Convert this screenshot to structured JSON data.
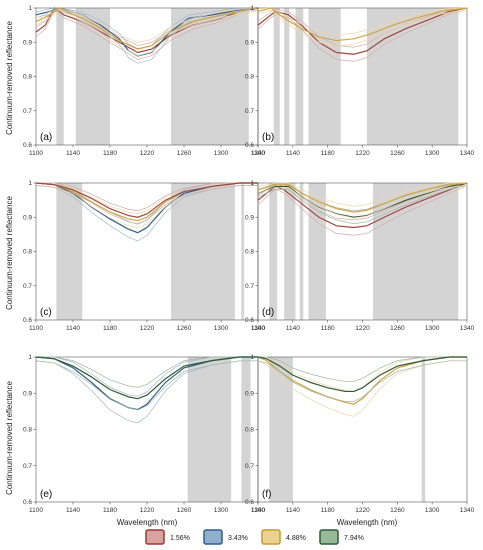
{
  "figure": {
    "ylabel": "Continuum-removed reflectance",
    "xlabel": "Wavelength (nm)"
  },
  "series_colors": {
    "1.56%": "#a0473f",
    "3.43%": "#2e5f8e",
    "4.88%": "#d5a53d",
    "7.94%": "#2f5a35"
  },
  "legend": [
    {
      "label": "1.56%",
      "fill": "#d8a3a0",
      "stroke": "#9a3b35"
    },
    {
      "label": "3.43%",
      "fill": "#8fb0cc",
      "stroke": "#2e5f8e"
    },
    {
      "label": "4.88%",
      "fill": "#ecd291",
      "stroke": "#c99a2e"
    },
    {
      "label": "7.94%",
      "fill": "#98b998",
      "stroke": "#2f5a35"
    }
  ],
  "chart_data": [
    {
      "type": "line",
      "panel": "(a)",
      "xlim": [
        1100,
        1340
      ],
      "ylim": [
        0.6,
        1.0
      ],
      "xticks": [
        1100,
        1140,
        1180,
        1220,
        1260,
        1300,
        1340
      ],
      "yticks": [
        "0.6",
        "0.7",
        "0.8",
        "0.9",
        "1"
      ],
      "shaded": [
        [
          1122,
          1130
        ],
        [
          1143,
          1180
        ],
        [
          1246,
          1330
        ]
      ],
      "band_width": 0.018,
      "series": [
        {
          "x": [
            1100,
            1110,
            1120,
            1130,
            1150,
            1170,
            1190,
            1210,
            1225,
            1245,
            1270,
            1300,
            1320,
            1340
          ],
          "y": [
            0.93,
            0.95,
            1.0,
            0.98,
            0.96,
            0.93,
            0.9,
            0.87,
            0.88,
            0.92,
            0.95,
            0.97,
            0.99,
            1.0
          ]
        },
        {
          "x": [
            1100,
            1115,
            1125,
            1150,
            1170,
            1190,
            1200,
            1210,
            1225,
            1245,
            1265,
            1290,
            1310,
            1330,
            1340
          ],
          "y": [
            0.98,
            0.99,
            1.0,
            0.98,
            0.95,
            0.91,
            0.875,
            0.86,
            0.87,
            0.93,
            0.97,
            0.98,
            0.99,
            1.0,
            1.0
          ]
        },
        {
          "x": [
            1100,
            1115,
            1125,
            1150,
            1170,
            1190,
            1210,
            1225,
            1245,
            1270,
            1300,
            1330,
            1340
          ],
          "y": [
            0.96,
            0.98,
            1.0,
            0.97,
            0.94,
            0.905,
            0.88,
            0.89,
            0.93,
            0.96,
            0.98,
            0.995,
            1.0
          ]
        }
      ]
    },
    {
      "type": "line",
      "panel": "(b)",
      "xlim": [
        1100,
        1340
      ],
      "ylim": [
        0.6,
        1.0
      ],
      "xticks": [
        1100,
        1140,
        1180,
        1220,
        1260,
        1300,
        1340
      ],
      "yticks": [
        "0.6",
        "0.7",
        "0.8",
        "0.9",
        "1"
      ],
      "shaded": [
        [
          1118,
          1125
        ],
        [
          1130,
          1136
        ],
        [
          1143,
          1152
        ],
        [
          1158,
          1195
        ],
        [
          1225,
          1330
        ]
      ],
      "band_width": 0.018,
      "series": [
        {
          "x": [
            1100,
            1110,
            1120,
            1135,
            1150,
            1170,
            1190,
            1210,
            1225,
            1245,
            1270,
            1300,
            1320,
            1340
          ],
          "y": [
            0.95,
            0.97,
            0.99,
            0.98,
            0.95,
            0.9,
            0.87,
            0.865,
            0.875,
            0.91,
            0.94,
            0.97,
            0.99,
            1.0
          ]
        },
        {
          "x": [
            1100,
            1115,
            1130,
            1150,
            1170,
            1190,
            1210,
            1230,
            1255,
            1280,
            1310,
            1340
          ],
          "y": [
            0.99,
            1.0,
            0.97,
            0.94,
            0.915,
            0.905,
            0.91,
            0.925,
            0.95,
            0.97,
            0.99,
            1.0
          ]
        }
      ]
    },
    {
      "type": "line",
      "panel": "(c)",
      "xlim": [
        1100,
        1340
      ],
      "ylim": [
        0.6,
        1.0
      ],
      "xticks": [
        1100,
        1140,
        1180,
        1220,
        1260,
        1300,
        1340
      ],
      "yticks": [
        "0.6",
        "0.7",
        "0.8",
        "0.9",
        "1"
      ],
      "shaded": [
        [
          1122,
          1150
        ],
        [
          1246,
          1315
        ],
        [
          1322,
          1325
        ]
      ],
      "band_width": 0.02,
      "series": [
        {
          "x": [
            1100,
            1120,
            1140,
            1160,
            1180,
            1200,
            1210,
            1220,
            1240,
            1260,
            1290,
            1320,
            1340
          ],
          "y": [
            1.0,
            0.995,
            0.97,
            0.93,
            0.895,
            0.865,
            0.855,
            0.87,
            0.93,
            0.97,
            0.99,
            1.0,
            1.0
          ]
        },
        {
          "x": [
            1100,
            1120,
            1140,
            1160,
            1180,
            1200,
            1210,
            1220,
            1240,
            1260,
            1290,
            1320,
            1340
          ],
          "y": [
            1.0,
            0.995,
            0.975,
            0.945,
            0.915,
            0.895,
            0.89,
            0.9,
            0.945,
            0.975,
            0.99,
            1.0,
            1.0
          ]
        },
        {
          "x": [
            1100,
            1120,
            1140,
            1160,
            1180,
            1200,
            1210,
            1220,
            1240,
            1260,
            1290,
            1320,
            1340
          ],
          "y": [
            1.0,
            0.995,
            0.98,
            0.955,
            0.925,
            0.905,
            0.9,
            0.91,
            0.95,
            0.975,
            0.99,
            1.0,
            1.0
          ]
        }
      ]
    },
    {
      "type": "line",
      "panel": "(d)",
      "xlim": [
        1100,
        1340
      ],
      "ylim": [
        0.6,
        1.0
      ],
      "xticks": [
        1100,
        1140,
        1180,
        1220,
        1260,
        1300,
        1340
      ],
      "yticks": [
        "0.6",
        "0.7",
        "0.8",
        "0.9",
        "1"
      ],
      "shaded": [
        [
          1113,
          1122
        ],
        [
          1130,
          1143
        ],
        [
          1148,
          1152
        ],
        [
          1158,
          1178
        ],
        [
          1232,
          1330
        ]
      ],
      "band_width": 0.02,
      "series": [
        {
          "x": [
            1100,
            1110,
            1120,
            1130,
            1150,
            1170,
            1190,
            1210,
            1225,
            1245,
            1270,
            1300,
            1320,
            1340
          ],
          "y": [
            0.95,
            0.97,
            0.99,
            0.98,
            0.94,
            0.9,
            0.875,
            0.87,
            0.875,
            0.9,
            0.93,
            0.96,
            0.98,
            1.0
          ]
        },
        {
          "x": [
            1100,
            1120,
            1135,
            1150,
            1170,
            1190,
            1210,
            1225,
            1245,
            1270,
            1300,
            1320,
            1340
          ],
          "y": [
            0.97,
            0.99,
            0.99,
            0.96,
            0.93,
            0.91,
            0.9,
            0.905,
            0.925,
            0.95,
            0.975,
            0.99,
            1.0
          ]
        },
        {
          "x": [
            1100,
            1120,
            1135,
            1150,
            1170,
            1190,
            1210,
            1225,
            1245,
            1270,
            1300,
            1320,
            1340
          ],
          "y": [
            0.98,
            0.995,
            0.995,
            0.97,
            0.945,
            0.925,
            0.915,
            0.92,
            0.94,
            0.965,
            0.985,
            0.995,
            1.0
          ]
        }
      ]
    },
    {
      "type": "line",
      "panel": "(e)",
      "xlim": [
        1100,
        1340
      ],
      "ylim": [
        0.6,
        1.0
      ],
      "xticks": [
        1100,
        1140,
        1180,
        1220,
        1260,
        1300,
        1340
      ],
      "yticks": [
        "0.6",
        "0.7",
        "0.8",
        "0.9",
        "1"
      ],
      "shaded": [
        [
          1264,
          1311
        ],
        [
          1322,
          1332
        ]
      ],
      "band_width": 0.03,
      "series": [
        {
          "x": [
            1100,
            1120,
            1140,
            1160,
            1180,
            1200,
            1210,
            1220,
            1240,
            1260,
            1290,
            1320,
            1340
          ],
          "y": [
            1.0,
            0.995,
            0.97,
            0.93,
            0.885,
            0.86,
            0.855,
            0.87,
            0.93,
            0.97,
            0.99,
            1.0,
            1.0
          ]
        },
        {
          "x": [
            1100,
            1120,
            1140,
            1160,
            1180,
            1200,
            1210,
            1220,
            1240,
            1260,
            1290,
            1320,
            1340
          ],
          "y": [
            1.0,
            0.995,
            0.975,
            0.945,
            0.91,
            0.89,
            0.885,
            0.895,
            0.94,
            0.975,
            0.99,
            1.0,
            1.0
          ]
        }
      ]
    },
    {
      "type": "line",
      "panel": "(f)",
      "xlim": [
        1100,
        1340
      ],
      "ylim": [
        0.6,
        1.0
      ],
      "xticks": [
        1100,
        1140,
        1180,
        1220,
        1260,
        1300,
        1340
      ],
      "yticks": [
        "0.6",
        "0.7",
        "0.8",
        "0.9",
        "1"
      ],
      "shaded": [
        [
          1113,
          1140
        ],
        [
          1288,
          1292
        ]
      ],
      "band_width": 0.03,
      "series": [
        {
          "x": [
            1100,
            1110,
            1125,
            1140,
            1160,
            1180,
            1200,
            1210,
            1220,
            1240,
            1260,
            1290,
            1320,
            1340
          ],
          "y": [
            1.0,
            0.99,
            0.96,
            0.935,
            0.91,
            0.89,
            0.875,
            0.87,
            0.885,
            0.935,
            0.97,
            0.99,
            1.0,
            1.0
          ]
        },
        {
          "x": [
            1100,
            1110,
            1125,
            1140,
            1160,
            1180,
            1200,
            1210,
            1220,
            1240,
            1260,
            1290,
            1320,
            1340
          ],
          "y": [
            1.0,
            0.995,
            0.975,
            0.95,
            0.93,
            0.915,
            0.905,
            0.905,
            0.915,
            0.95,
            0.975,
            0.99,
            1.0,
            1.0
          ]
        }
      ]
    }
  ]
}
